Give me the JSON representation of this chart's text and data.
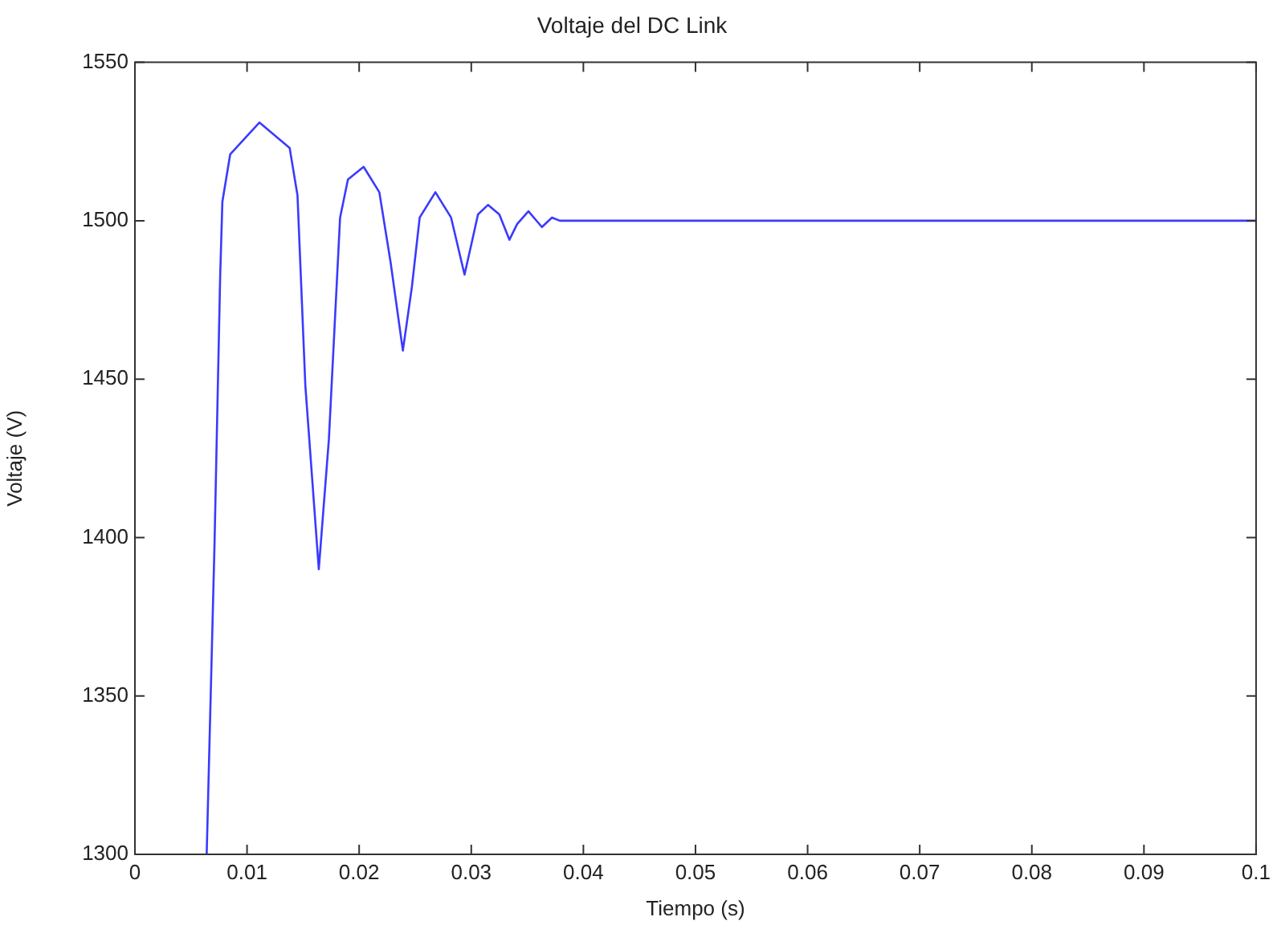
{
  "chart_data": {
    "type": "line",
    "title": "Voltaje del DC Link",
    "xlabel": "Tiempo (s)",
    "ylabel": "Voltaje (V)",
    "xlim": [
      0,
      0.1
    ],
    "xticks": [
      0,
      0.01,
      0.02,
      0.03,
      0.04,
      0.05,
      0.06,
      0.07,
      0.08,
      0.09,
      0.1
    ],
    "ylim": [
      1300,
      1550
    ],
    "yticks": [
      1300,
      1350,
      1400,
      1450,
      1500,
      1550
    ],
    "grid": false,
    "legend": false,
    "marker": "none",
    "line_style": "solid",
    "series": [
      {
        "color": "#3a3aff",
        "x": [
          0.0064,
          0.0071,
          0.0076,
          0.0078,
          0.0085,
          0.0111,
          0.0138,
          0.0145,
          0.0152,
          0.0164,
          0.0173,
          0.0183,
          0.019,
          0.0204,
          0.0218,
          0.0228,
          0.0239,
          0.0247,
          0.0254,
          0.0268,
          0.0282,
          0.0294,
          0.0301,
          0.0306,
          0.0315,
          0.0325,
          0.0334,
          0.0341,
          0.0351,
          0.0363,
          0.0372,
          0.0379,
          0.0386,
          0.1
        ],
        "values": [
          1300,
          1398,
          1482,
          1506,
          1521,
          1531,
          1523,
          1508,
          1448,
          1390,
          1431,
          1501,
          1513,
          1517,
          1509,
          1487,
          1459,
          1479,
          1501,
          1509,
          1501,
          1483,
          1494,
          1502,
          1505,
          1502,
          1494,
          1499,
          1503,
          1498,
          1501,
          1500,
          1500,
          1500
        ]
      }
    ]
  }
}
